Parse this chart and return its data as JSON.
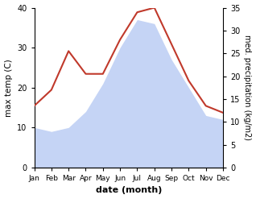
{
  "months": [
    "Jan",
    "Feb",
    "Mar",
    "Apr",
    "May",
    "Jun",
    "Jul",
    "Aug",
    "Sep",
    "Oct",
    "Nov",
    "Dec"
  ],
  "temperature": [
    10,
    9,
    10,
    14,
    21,
    30,
    37,
    36,
    27,
    20,
    13,
    12
  ],
  "precipitation": [
    13.5,
    17,
    25.5,
    20.5,
    20.5,
    28,
    34,
    35,
    27,
    19,
    13.5,
    12
  ],
  "temp_color_fill": "#c5d4f5",
  "precip_color": "#c0392b",
  "left_ylabel": "max temp (C)",
  "right_ylabel": "med. precipitation (kg/m2)",
  "xlabel": "date (month)",
  "ylim_left": [
    0,
    40
  ],
  "ylim_right": [
    0,
    35
  ],
  "yticks_left": [
    0,
    10,
    20,
    30,
    40
  ],
  "yticks_right": [
    0,
    5,
    10,
    15,
    20,
    25,
    30,
    35
  ],
  "bg_color": "#ffffff"
}
